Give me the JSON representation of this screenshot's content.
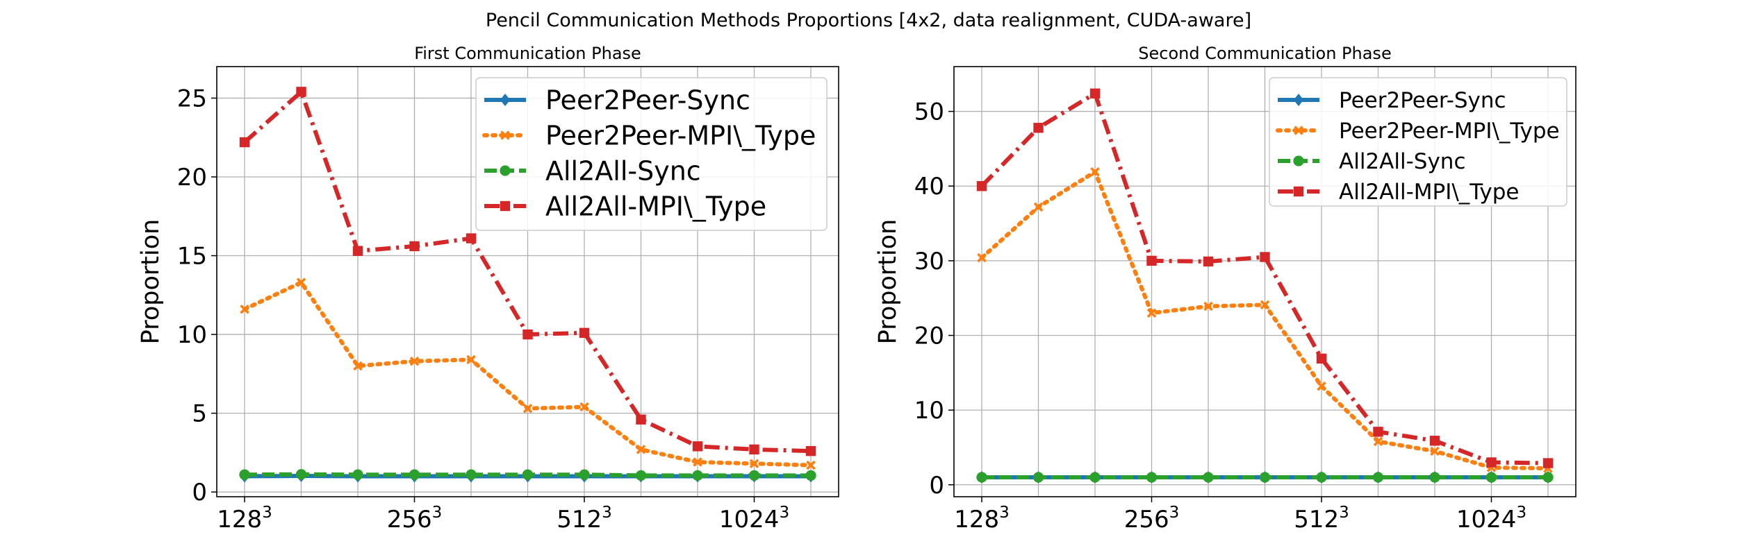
{
  "suptitle": "Pencil Communication Methods Proportions [4x2, data realignment, CUDA-aware]",
  "colors": {
    "blue": "#1f77b4",
    "orange": "#ff7f0e",
    "green": "#2ca02c",
    "red": "#d62728",
    "grid": "#b0b0b0"
  },
  "chart_data": [
    {
      "type": "line",
      "title": "First Communication Phase",
      "xlabel": "",
      "ylabel": "Proportion",
      "x_tick_labels": [
        {
          "base": "128",
          "exp": "3",
          "index": 0
        },
        {
          "base": "256",
          "exp": "3",
          "index": 3
        },
        {
          "base": "512",
          "exp": "3",
          "index": 6
        },
        {
          "base": "1024",
          "exp": "3",
          "index": 9
        }
      ],
      "num_points": 11,
      "ylim": [
        -0.3,
        27
      ],
      "yticks": [
        0,
        5,
        10,
        15,
        20,
        25
      ],
      "grid": true,
      "legend_position": "top-right",
      "series": [
        {
          "name": "Peer2Peer-Sync",
          "color": "blue",
          "style": "solid",
          "marker": "diamond",
          "values": [
            1.0,
            1.02,
            1.0,
            1.0,
            1.0,
            1.0,
            1.0,
            1.0,
            1.0,
            1.0,
            1.0
          ]
        },
        {
          "name": "Peer2Peer-MPI\\_Type",
          "color": "orange",
          "style": "dotted",
          "marker": "x",
          "values": [
            11.6,
            13.3,
            8.0,
            8.3,
            8.4,
            5.3,
            5.4,
            2.7,
            1.9,
            1.8,
            1.7
          ]
        },
        {
          "name": "All2All-Sync",
          "color": "green",
          "style": "dashed",
          "marker": "circle",
          "values": [
            1.1,
            1.12,
            1.1,
            1.1,
            1.1,
            1.1,
            1.1,
            1.05,
            1.05,
            1.05,
            1.05
          ]
        },
        {
          "name": "All2All-MPI\\_Type",
          "color": "red",
          "style": "dashdot",
          "marker": "square",
          "values": [
            22.2,
            25.4,
            15.3,
            15.6,
            16.1,
            10.0,
            10.1,
            4.6,
            2.9,
            2.7,
            2.6
          ]
        }
      ]
    },
    {
      "type": "line",
      "title": "Second Communication Phase",
      "xlabel": "",
      "ylabel": "Proportion",
      "x_tick_labels": [
        {
          "base": "128",
          "exp": "3",
          "index": 0
        },
        {
          "base": "256",
          "exp": "3",
          "index": 3
        },
        {
          "base": "512",
          "exp": "3",
          "index": 6
        },
        {
          "base": "1024",
          "exp": "3",
          "index": 9
        }
      ],
      "num_points": 11,
      "ylim": [
        -1.6,
        56
      ],
      "yticks": [
        0,
        10,
        20,
        30,
        40,
        50
      ],
      "grid": true,
      "legend_position": "top-right",
      "series": [
        {
          "name": "Peer2Peer-Sync",
          "color": "blue",
          "style": "solid",
          "marker": "diamond",
          "values": [
            1.0,
            1.0,
            1.0,
            1.0,
            1.0,
            1.0,
            1.0,
            1.0,
            1.0,
            1.0,
            1.0
          ]
        },
        {
          "name": "Peer2Peer-MPI\\_Type",
          "color": "orange",
          "style": "dotted",
          "marker": "x",
          "values": [
            30.4,
            37.2,
            41.9,
            23.0,
            23.9,
            24.1,
            13.2,
            5.8,
            4.5,
            2.3,
            2.2
          ]
        },
        {
          "name": "All2All-Sync",
          "color": "green",
          "style": "dashed",
          "marker": "circle",
          "values": [
            1.0,
            1.0,
            1.0,
            1.0,
            1.0,
            1.0,
            1.0,
            1.0,
            1.0,
            1.0,
            1.0
          ]
        },
        {
          "name": "All2All-MPI\\_Type",
          "color": "red",
          "style": "dashdot",
          "marker": "square",
          "values": [
            40.0,
            47.8,
            52.4,
            30.0,
            29.9,
            30.5,
            16.9,
            7.1,
            5.9,
            3.0,
            2.9
          ]
        }
      ]
    }
  ]
}
